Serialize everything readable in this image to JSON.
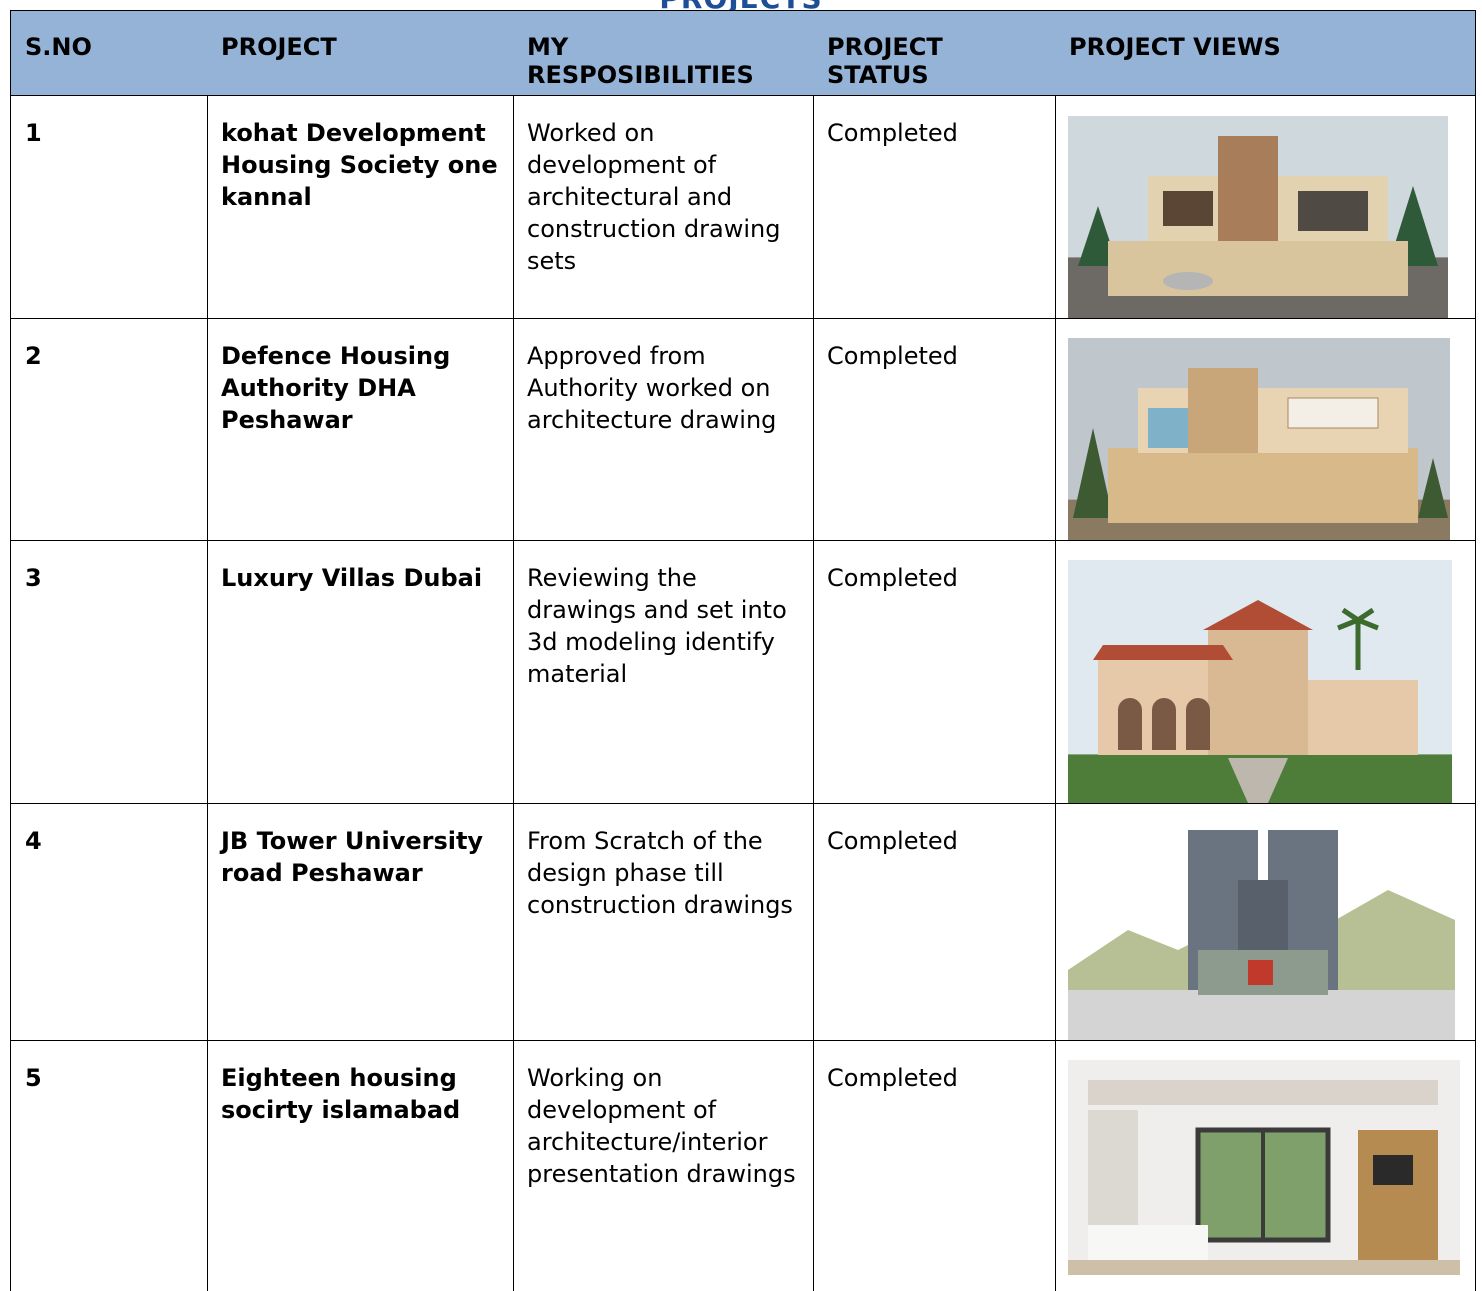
{
  "title": "PROJECTS",
  "table": {
    "headers": [
      "S.NO",
      "PROJECT",
      "MY RESPOSIBILITIES",
      "PROJECT STATUS",
      "PROJECT VIEWS"
    ],
    "rows": [
      [
        "1",
        "kohat Development Housing Society one kannal",
        "Worked on development of architectural and construction drawing sets",
        "Completed"
      ],
      [
        "2",
        "Defence Housing Authority DHA Peshawar",
        "Approved from Authority worked on architecture drawing",
        "Completed"
      ],
      [
        "3",
        "Luxury Villas Dubai",
        "Reviewing the drawings and set into 3d modeling identify material",
        "Completed"
      ],
      [
        "4",
        "JB Tower University road Peshawar",
        "From Scratch of the design phase till construction drawings",
        "Completed"
      ],
      [
        "5",
        "Eighteen housing socirty islamabad",
        "Working on development of architecture/interior presentation drawings",
        "Completed"
      ]
    ]
  }
}
